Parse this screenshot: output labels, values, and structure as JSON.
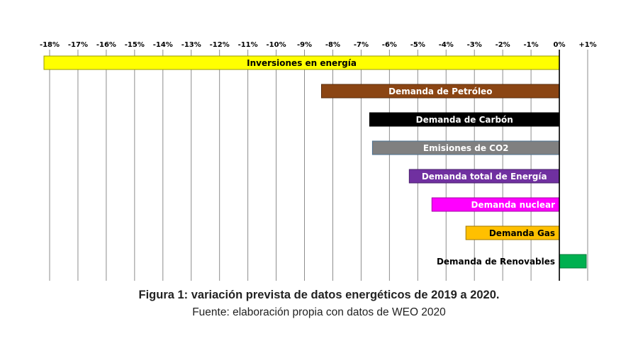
{
  "chart_data": {
    "type": "bar",
    "orientation": "horizontal",
    "x_ticks": [
      "-18%",
      "-17%",
      "-16%",
      "-15%",
      "-14%",
      "-13%",
      "-12%",
      "-11%",
      "-10%",
      "-9%",
      "-8%",
      "-7%",
      "-6%",
      "-5%",
      "-4%",
      "-3%",
      "-2%",
      "-1%",
      "0%",
      "+1%"
    ],
    "xlim": [
      -18,
      1
    ],
    "grid": true,
    "tick_position": "top",
    "unit": "%",
    "bars": [
      {
        "label": "Inversiones en energía",
        "value": -18.2,
        "color": "#FFFF00",
        "label_color": "#000000",
        "border": "#9a9a00"
      },
      {
        "label": "Demanda de Petróleo",
        "value": -8.4,
        "color": "#8B4513",
        "label_color": "#ffffff",
        "border": "#5a2d0c"
      },
      {
        "label": "Demanda de Carbón",
        "value": -6.7,
        "color": "#000000",
        "label_color": "#ffffff",
        "border": "#000000"
      },
      {
        "label": "Emisiones de CO2",
        "value": -6.6,
        "color": "#808080",
        "label_color": "#ffffff",
        "border": "#4a6f8f"
      },
      {
        "label": "Demanda total de Energía",
        "value": -5.3,
        "color": "#7030A0",
        "label_color": "#ffffff",
        "border": "#4a1f6b"
      },
      {
        "label": "Demanda nuclear",
        "value": -4.5,
        "color": "#FF00FF",
        "label_color": "#ffffff",
        "border": "#a000a0"
      },
      {
        "label": "Demanda Gas",
        "value": -3.3,
        "color": "#FFC000",
        "label_color": "#000000",
        "border": "#a07800"
      },
      {
        "label": "Demanda de Renovables",
        "value": 0.95,
        "color": "#00B050",
        "label_color": "#000000",
        "border": "#007a38"
      }
    ]
  },
  "caption": {
    "title": "Figura 1: variación prevista de datos energéticos de 2019 a 2020.",
    "source": "Fuente: elaboración propia con datos de WEO 2020"
  }
}
